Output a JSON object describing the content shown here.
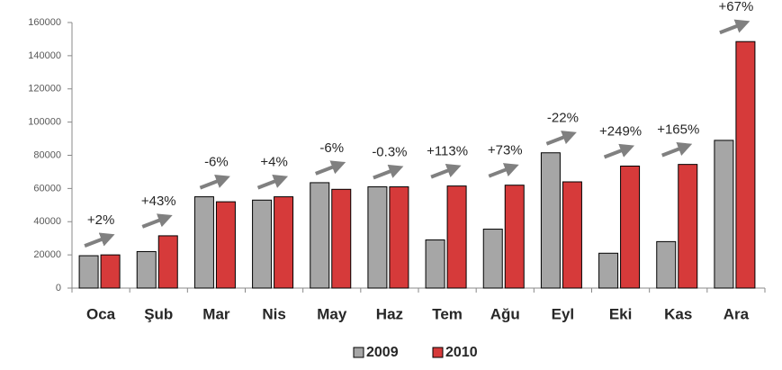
{
  "chart_data": {
    "type": "bar",
    "categories": [
      "Oca",
      "Şub",
      "Mar",
      "Nis",
      "May",
      "Haz",
      "Tem",
      "Ağu",
      "Eyl",
      "Eki",
      "Kas",
      "Ara"
    ],
    "series": [
      {
        "name": "2009",
        "color": "#a6a6a6",
        "values": [
          19500,
          22000,
          55000,
          53000,
          63500,
          61000,
          29000,
          35500,
          81500,
          21000,
          28000,
          89000
        ]
      },
      {
        "name": "2010",
        "color": "#d63a3a",
        "values": [
          20000,
          31500,
          52000,
          55000,
          59500,
          61000,
          61500,
          62000,
          64000,
          73500,
          74500,
          148500
        ]
      }
    ],
    "annotations": [
      "+2%",
      "+43%",
      "-6%",
      "+4%",
      "-6%",
      "-0.3%",
      "+113%",
      "+73%",
      "-22%",
      "+249%",
      "+165%",
      "+67%"
    ],
    "ylim": [
      0,
      160000
    ],
    "yticks": [
      0,
      20000,
      40000,
      60000,
      80000,
      100000,
      120000,
      140000,
      160000
    ],
    "grid": false,
    "legend": "bottom"
  }
}
